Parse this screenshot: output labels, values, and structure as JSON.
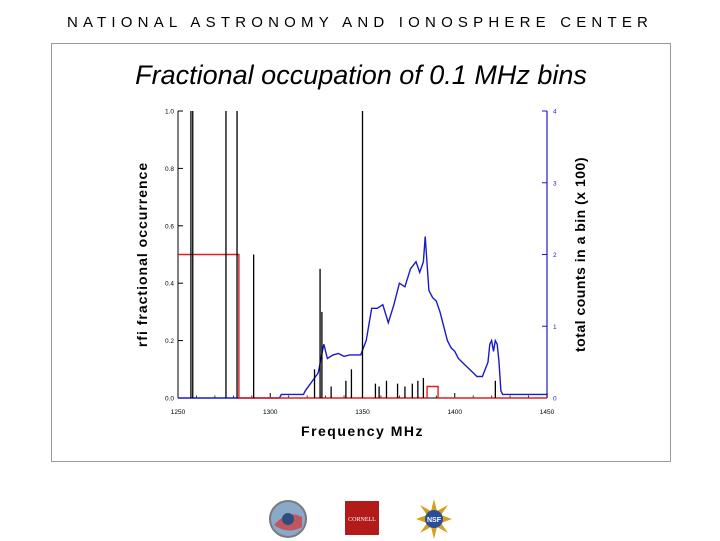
{
  "header": "NATIONAL ASTRONOMY AND IONOSPHERE CENTER",
  "chart_data": {
    "type": "line",
    "title": "Fractional occupation of 0.1 MHz bins",
    "xlabel": "Frequency  MHz",
    "ylabel_left": "rfi fractional occurrence",
    "ylabel_right": "total counts in a bin (x 100)",
    "xlim": [
      1250,
      1450
    ],
    "ylim_left": [
      0.0,
      1.0
    ],
    "ylim_right": [
      0,
      4
    ],
    "x_ticks": [
      "1250",
      "1300",
      "1350",
      "1400",
      "1450"
    ],
    "y_left_ticks": [
      "0.0",
      "0.2",
      "0.4",
      "0.6",
      "0.8",
      "1.0"
    ],
    "y_right_ticks": [
      "0",
      "1",
      "2",
      "3",
      "4"
    ],
    "series": [
      {
        "color": "#1a1acc",
        "axis": "right",
        "x": [
          1250,
          1305,
          1306,
          1318,
          1319,
          1326,
          1329,
          1331,
          1334,
          1337,
          1340,
          1343,
          1346,
          1349,
          1352,
          1355,
          1358,
          1361,
          1364,
          1367,
          1370,
          1373,
          1376,
          1379,
          1381,
          1383,
          1384,
          1386,
          1388,
          1390,
          1392,
          1394,
          1396,
          1398,
          1400,
          1402,
          1404,
          1406,
          1408,
          1410,
          1412,
          1415,
          1418,
          1419,
          1420,
          1421,
          1422,
          1423,
          1424,
          1425,
          1426,
          1430,
          1450
        ],
        "values": [
          0.0,
          0.0,
          0.05,
          0.05,
          0.1,
          0.35,
          0.75,
          0.55,
          0.6,
          0.62,
          0.58,
          0.6,
          0.6,
          0.6,
          0.8,
          1.25,
          1.25,
          1.3,
          1.05,
          1.3,
          1.6,
          1.55,
          1.8,
          1.9,
          1.75,
          1.9,
          2.25,
          1.5,
          1.4,
          1.35,
          1.2,
          1.0,
          0.8,
          0.7,
          0.65,
          0.55,
          0.5,
          0.45,
          0.4,
          0.35,
          0.3,
          0.3,
          0.5,
          0.75,
          0.8,
          0.65,
          0.8,
          0.75,
          0.5,
          0.1,
          0.05,
          0.05,
          0.05
        ]
      },
      {
        "color": "#e02020",
        "axis": "left",
        "x": [
          1250,
          1283,
          1283,
          1303,
          1303,
          1385,
          1385,
          1391,
          1391,
          1450
        ],
        "values": [
          0.5,
          0.5,
          0.0,
          0.0,
          0.0,
          0.0,
          0.04,
          0.04,
          0.0,
          0.0
        ]
      },
      {
        "color": "#000000",
        "axis": "left",
        "kind": "spikes",
        "x": [
          1257,
          1258,
          1276,
          1282,
          1291,
          1324,
          1327,
          1328,
          1333,
          1341,
          1344,
          1350,
          1357,
          1359,
          1363,
          1369,
          1373,
          1377,
          1380,
          1383,
          1422
        ],
        "values": [
          1.0,
          1.0,
          1.0,
          1.0,
          0.5,
          0.1,
          0.45,
          0.3,
          0.04,
          0.06,
          0.1,
          1.0,
          0.05,
          0.04,
          0.06,
          0.05,
          0.04,
          0.05,
          0.06,
          0.07,
          0.06
        ]
      }
    ]
  },
  "logos": {
    "left_name": "naic-logo",
    "center_name": "cornell-logo",
    "center_text": "CORNELL",
    "right_name": "nsf-logo",
    "right_text": "NSF"
  }
}
